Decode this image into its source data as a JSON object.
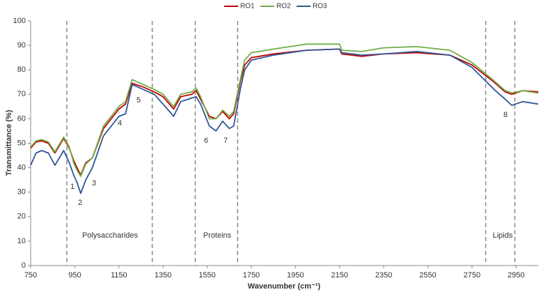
{
  "chart_data": {
    "type": "line",
    "xlabel": "Wavenumber (cm⁻¹)",
    "ylabel": "Transmittance (%)",
    "x": [
      750,
      775,
      800,
      830,
      860,
      900,
      925,
      945,
      960,
      977,
      1000,
      1030,
      1080,
      1150,
      1180,
      1210,
      1260,
      1310,
      1350,
      1398,
      1430,
      1480,
      1500,
      1520,
      1560,
      1590,
      1620,
      1650,
      1670,
      1700,
      1720,
      1750,
      1850,
      2000,
      2150,
      2160,
      2250,
      2350,
      2500,
      2650,
      2750,
      2850,
      2900,
      2930,
      2980,
      3050
    ],
    "series": [
      {
        "name": "RO1",
        "color": "#c00000",
        "values": [
          48,
          50.5,
          51,
          50,
          46,
          52,
          48,
          43,
          40,
          37,
          42,
          44,
          56,
          64,
          66,
          74.5,
          73,
          71,
          69,
          64,
          69,
          70,
          71.5,
          68,
          61,
          60,
          63,
          60,
          62,
          75,
          82,
          85,
          86.5,
          88,
          88.5,
          86.5,
          85.5,
          86.5,
          87,
          86,
          82,
          75,
          71,
          70,
          71.5,
          71
        ]
      },
      {
        "name": "RO2",
        "color": "#70ad47",
        "values": [
          48.5,
          51,
          51.5,
          50.5,
          46.5,
          52.5,
          48.5,
          42,
          39,
          36.5,
          41.5,
          44,
          57,
          65,
          67,
          76,
          74,
          72,
          70,
          65,
          70,
          71,
          72.5,
          69,
          60,
          60,
          63.5,
          61,
          63,
          76,
          84,
          87,
          88.5,
          90.5,
          90.5,
          88,
          87.5,
          89,
          89.5,
          88,
          83,
          75.5,
          71.5,
          70.5,
          71.5,
          70.5
        ]
      },
      {
        "name": "RO3",
        "color": "#2f5597",
        "values": [
          41,
          46,
          47,
          46,
          41,
          47,
          42,
          37,
          34,
          29.5,
          35,
          40,
          53,
          61,
          62,
          74,
          72,
          70,
          66,
          61,
          67,
          68.5,
          69,
          66,
          57,
          55,
          59,
          56,
          57,
          72,
          80,
          84,
          86,
          88,
          88.5,
          87,
          86,
          86.5,
          87.5,
          86,
          81,
          72,
          68,
          65.5,
          67,
          66
        ]
      }
    ],
    "xlim": [
      750,
      3050
    ],
    "ylim": [
      0,
      100
    ],
    "xticks": [
      750,
      950,
      1150,
      1350,
      1550,
      1750,
      1950,
      2150,
      2350,
      2550,
      2750,
      2950
    ],
    "yticks": [
      0,
      10,
      20,
      30,
      40,
      50,
      60,
      70,
      80,
      90,
      100
    ],
    "vlines": [
      914,
      1301,
      1496,
      1688,
      2812,
      2944
    ],
    "regions": [
      "Polysaccharides",
      "Proteins",
      "Lipids"
    ],
    "annotations": [
      "1",
      "2",
      "3",
      "4",
      "5",
      "6",
      "7",
      "8"
    ],
    "legend": "top"
  }
}
